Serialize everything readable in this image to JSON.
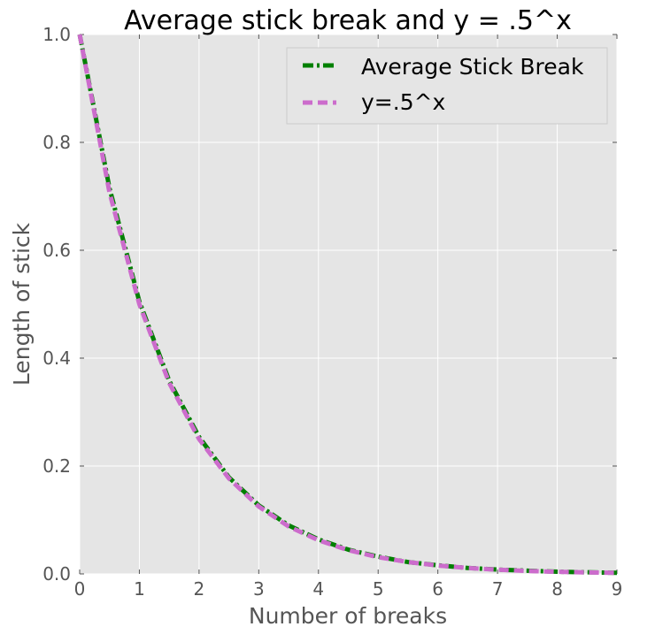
{
  "chart_data": {
    "type": "line",
    "title": "Average stick break and y = .5^x",
    "xlabel": "Number of breaks",
    "ylabel": "Length of stick",
    "xlim": [
      0,
      9
    ],
    "ylim": [
      0.0,
      1.0
    ],
    "xticks": [
      "0",
      "1",
      "2",
      "3",
      "4",
      "5",
      "6",
      "7",
      "8",
      "9"
    ],
    "yticks": [
      "0.0",
      "0.2",
      "0.4",
      "0.6",
      "0.8",
      "1.0"
    ],
    "grid": true,
    "legend_position": "top-right",
    "background_color": "#e5e5e5",
    "grid_color": "#ffffff",
    "series": [
      {
        "name": "Average Stick Break",
        "color": "#008000",
        "style": "dash-dot",
        "x": [
          0,
          0.5,
          1,
          1.5,
          2,
          2.5,
          3,
          3.5,
          4,
          4.5,
          5,
          5.5,
          6,
          6.5,
          7,
          7.5,
          8,
          8.5,
          9
        ],
        "values": [
          1.0,
          0.715,
          0.505,
          0.358,
          0.254,
          0.179,
          0.127,
          0.09,
          0.064,
          0.045,
          0.032,
          0.022,
          0.016,
          0.011,
          0.008,
          0.006,
          0.004,
          0.003,
          0.002
        ]
      },
      {
        "name": "y=.5^x",
        "color": "#cc6ccc",
        "style": "dashed",
        "x": [
          0,
          0.5,
          1,
          1.5,
          2,
          2.5,
          3,
          3.5,
          4,
          4.5,
          5,
          5.5,
          6,
          6.5,
          7,
          7.5,
          8,
          8.5,
          9
        ],
        "values": [
          1.0,
          0.707,
          0.5,
          0.354,
          0.25,
          0.177,
          0.125,
          0.088,
          0.0625,
          0.044,
          0.031,
          0.022,
          0.0156,
          0.011,
          0.0078,
          0.0055,
          0.0039,
          0.0028,
          0.002
        ]
      }
    ]
  }
}
